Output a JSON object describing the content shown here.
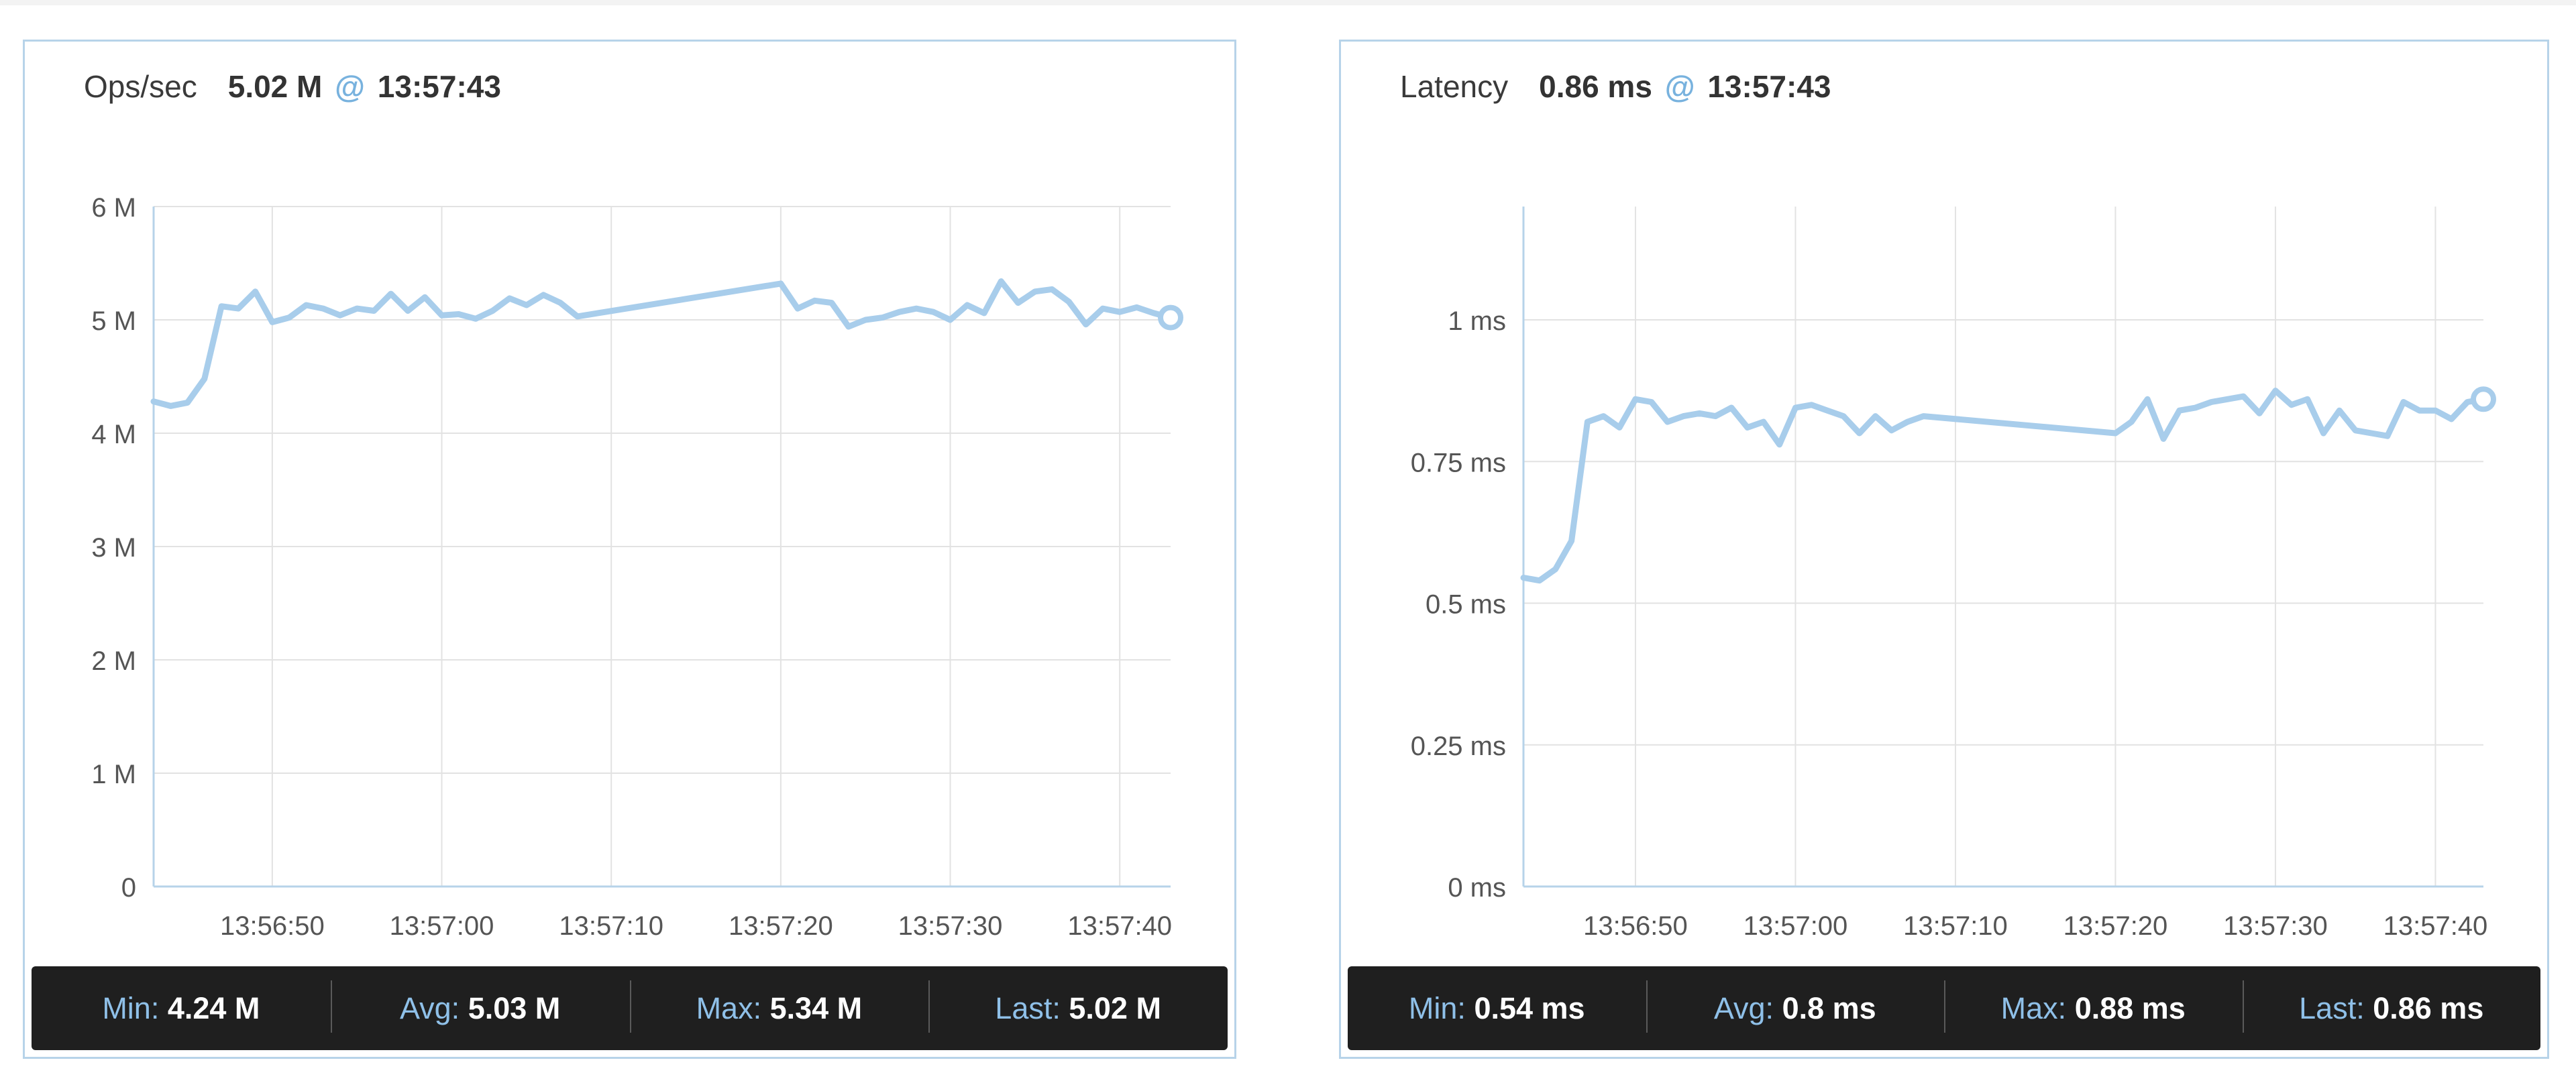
{
  "panels": [
    {
      "title": "Ops/sec",
      "current_value": "5.02 M",
      "at_symbol": "@",
      "current_time": "13:57:43",
      "stats": [
        {
          "label": "Min:",
          "value": "4.24 M"
        },
        {
          "label": "Avg:",
          "value": "5.03 M"
        },
        {
          "label": "Max:",
          "value": "5.34 M"
        },
        {
          "label": "Last:",
          "value": "5.02 M"
        }
      ]
    },
    {
      "title": "Latency",
      "current_value": "0.86 ms",
      "at_symbol": "@",
      "current_time": "13:57:43",
      "stats": [
        {
          "label": "Min:",
          "value": "0.54 ms"
        },
        {
          "label": "Avg:",
          "value": "0.8 ms"
        },
        {
          "label": "Max:",
          "value": "0.88 ms"
        },
        {
          "label": "Last:",
          "value": "0.86 ms"
        }
      ]
    }
  ],
  "chart_data": [
    {
      "type": "line",
      "title": "Ops/sec",
      "line_color": "#a8cdeb",
      "xlim": [
        43,
        98
      ],
      "ylim": [
        0,
        6
      ],
      "x_ticks": [
        50,
        60,
        70,
        80,
        90,
        100
      ],
      "x_tick_labels": [
        "13:56:50",
        "13:57:00",
        "13:57:10",
        "13:57:20",
        "13:57:30",
        "13:57:40"
      ],
      "y_ticks": [
        0,
        1,
        2,
        3,
        4,
        5,
        6
      ],
      "y_tick_labels": [
        "0",
        "1 M",
        "2 M",
        "3 M",
        "4 M",
        "5 M",
        "6 M"
      ],
      "grid": true,
      "series": [
        {
          "x": [
            43,
            44,
            45,
            46,
            47,
            48,
            49,
            50,
            51,
            52,
            53,
            54,
            55,
            56,
            57,
            58,
            59,
            60,
            61,
            62,
            63,
            64,
            65,
            66,
            67,
            68,
            80,
            81,
            82,
            83,
            84,
            85,
            86,
            87,
            88,
            89,
            90,
            91,
            92,
            93,
            94,
            95,
            96,
            97,
            98,
            99,
            100,
            101,
            102,
            103
          ],
          "y": [
            4.28,
            4.24,
            4.27,
            4.48,
            5.12,
            5.1,
            5.25,
            4.98,
            5.02,
            5.13,
            5.1,
            5.04,
            5.1,
            5.08,
            5.23,
            5.08,
            5.2,
            5.04,
            5.05,
            5.01,
            5.08,
            5.19,
            5.13,
            5.22,
            5.15,
            5.03,
            5.32,
            5.1,
            5.17,
            5.15,
            4.94,
            5.0,
            5.02,
            5.07,
            5.1,
            5.07,
            5.0,
            5.13,
            5.06,
            5.34,
            5.15,
            5.25,
            5.27,
            5.16,
            4.96,
            5.1,
            5.07,
            5.11,
            5.06,
            5.02
          ]
        }
      ]
    },
    {
      "type": "line",
      "title": "Latency",
      "line_color": "#a8cdeb",
      "xlim": [
        43,
        103
      ],
      "ylim": [
        0,
        1.2
      ],
      "x_ticks": [
        50,
        60,
        70,
        80,
        90,
        100
      ],
      "x_tick_labels": [
        "13:56:50",
        "13:57:00",
        "13:57:10",
        "13:57:20",
        "13:57:30",
        "13:57:40"
      ],
      "y_ticks": [
        0,
        0.25,
        0.5,
        0.75,
        1.0
      ],
      "y_tick_labels": [
        "0 ms",
        "0.25 ms",
        "0.5 ms",
        "0.75 ms",
        "1 ms"
      ],
      "grid": true,
      "series": [
        {
          "x": [
            43,
            44,
            45,
            46,
            47,
            48,
            49,
            50,
            51,
            52,
            53,
            54,
            55,
            56,
            57,
            58,
            59,
            60,
            61,
            62,
            63,
            64,
            65,
            66,
            67,
            68,
            80,
            81,
            82,
            83,
            84,
            85,
            86,
            87,
            88,
            89,
            90,
            91,
            92,
            93,
            94,
            95,
            96,
            97,
            98,
            99,
            100,
            101,
            102,
            103
          ],
          "y": [
            0.545,
            0.54,
            0.56,
            0.61,
            0.82,
            0.83,
            0.81,
            0.86,
            0.855,
            0.82,
            0.83,
            0.835,
            0.83,
            0.845,
            0.81,
            0.82,
            0.78,
            0.845,
            0.85,
            0.84,
            0.83,
            0.8,
            0.83,
            0.805,
            0.82,
            0.83,
            0.8,
            0.82,
            0.86,
            0.79,
            0.84,
            0.845,
            0.855,
            0.86,
            0.865,
            0.835,
            0.875,
            0.85,
            0.86,
            0.8,
            0.84,
            0.805,
            0.8,
            0.795,
            0.855,
            0.84,
            0.84,
            0.825,
            0.855,
            0.86
          ]
        }
      ]
    }
  ]
}
